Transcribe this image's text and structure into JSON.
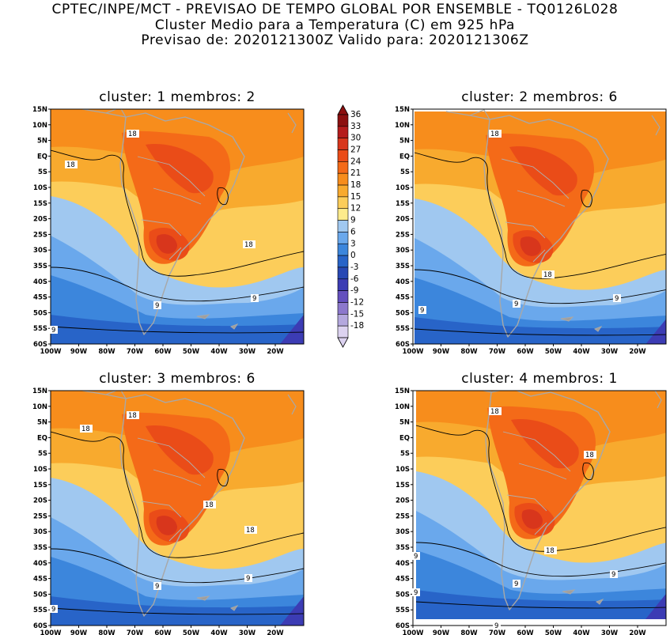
{
  "header": {
    "line1": "CPTEC/INPE/MCT - PREVISAO DE TEMPO GLOBAL POR ENSEMBLE - TQ0126L028",
    "line2": "Cluster Medio para a Temperatura (C) em 925 hPa",
    "line3": "Previsao de: 2020121300Z   Valido para: 2020121306Z"
  },
  "lat_labels": [
    "15N",
    "10N",
    "5N",
    "EQ",
    "5S",
    "10S",
    "15S",
    "20S",
    "25S",
    "30S",
    "35S",
    "40S",
    "45S",
    "50S",
    "55S",
    "60S"
  ],
  "lon_labels": [
    "100W",
    "90W",
    "80W",
    "70W",
    "60W",
    "50W",
    "40W",
    "30W",
    "20W"
  ],
  "colorbar": {
    "labels": [
      "36",
      "33",
      "30",
      "27",
      "24",
      "21",
      "18",
      "15",
      "12",
      "9",
      "6",
      "3",
      "0",
      "-3",
      "-6",
      "-9",
      "-12",
      "-15",
      "-18"
    ],
    "colors": [
      "#8c1010",
      "#b51c1c",
      "#d8361c",
      "#ea4c18",
      "#f46a18",
      "#f78d1c",
      "#f8aa2e",
      "#fccd5a",
      "#fdeb8c",
      "#a0c8f0",
      "#6aa8ec",
      "#3c86dc",
      "#2864c8",
      "#2848b4",
      "#3c3cb4",
      "#6450be",
      "#8c78cc",
      "#b4a8de",
      "#dcd2f0"
    ]
  },
  "panels": [
    {
      "title": "cluster: 1   membros: 2",
      "contour_labels": [
        "18",
        "18",
        "18",
        "9",
        "9",
        "9"
      ]
    },
    {
      "title": "cluster: 2   membros: 6",
      "contour_labels": [
        "18",
        "18",
        "9",
        "9",
        "9"
      ]
    },
    {
      "title": "cluster: 3   membros: 6",
      "contour_labels": [
        "18",
        "18",
        "18",
        "18",
        "9",
        "9",
        "9"
      ]
    },
    {
      "title": "cluster: 4   membros: 1",
      "contour_labels": [
        "18",
        "18",
        "18",
        "9",
        "9",
        "9",
        "9",
        "9"
      ]
    }
  ]
}
